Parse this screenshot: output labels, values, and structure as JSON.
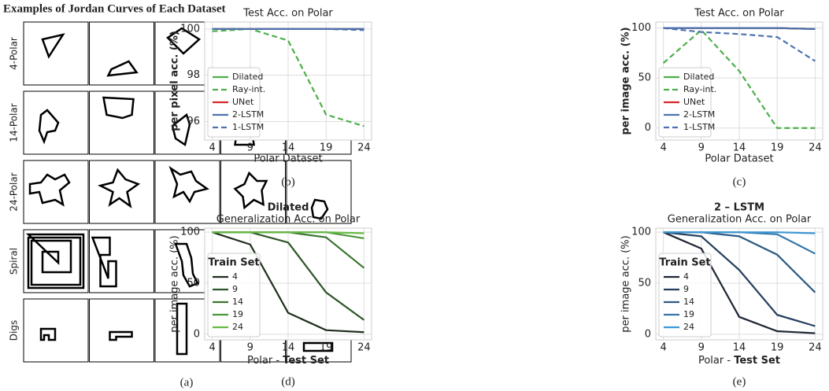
{
  "panel_a": {
    "title": "Examples of Jordan Curves of Each Dataset",
    "row_labels": [
      "4-Polar",
      "14-Polar",
      "24-Polar",
      "Spiral",
      "Digs"
    ],
    "caption": "(a)"
  },
  "chart_data": [
    {
      "type": "line",
      "title": "Test Acc. on Polar",
      "ylabel": "per pixel acc.  (%)",
      "xlabel": "Polar Dataset",
      "caption": "(b)",
      "x": [
        4,
        9,
        14,
        19,
        24
      ],
      "xlim": [
        3,
        25
      ],
      "xticks": [
        4,
        9,
        14,
        19,
        24
      ],
      "ylim": [
        95.2,
        100.3
      ],
      "yticks": [
        96,
        98,
        100
      ],
      "grid": true,
      "legend": "lower left",
      "series": [
        {
          "name": "Dilated",
          "color": "#4daf4a",
          "dash": false,
          "values": [
            100,
            100,
            100,
            100,
            100
          ]
        },
        {
          "name": "Ray-int.",
          "color": "#4daf4a",
          "dash": true,
          "values": [
            99.9,
            100,
            99.5,
            96.3,
            95.8
          ]
        },
        {
          "name": "UNet",
          "color": "#d62728",
          "dash": false,
          "values": [
            100,
            100,
            100,
            100,
            100
          ]
        },
        {
          "name": "2-LSTM",
          "color": "#4c72b0",
          "dash": false,
          "values": [
            100,
            100,
            100,
            100,
            100
          ]
        },
        {
          "name": "1-LSTM",
          "color": "#4c72b0",
          "dash": true,
          "values": [
            100,
            100,
            100,
            100,
            99.95
          ]
        }
      ]
    },
    {
      "type": "line",
      "title": "Test Acc. on Polar",
      "ylabel": "per image acc.  (%)",
      "xlabel": "Polar Dataset",
      "caption": "(c)",
      "x": [
        4,
        9,
        14,
        19,
        24
      ],
      "xlim": [
        3,
        25
      ],
      "xticks": [
        4,
        9,
        14,
        19,
        24
      ],
      "ylim": [
        -12,
        106
      ],
      "yticks": [
        0,
        50,
        100
      ],
      "grid": true,
      "legend": "lower left",
      "series": [
        {
          "name": "Dilated",
          "color": "#4daf4a",
          "dash": false,
          "values": [
            100,
            100,
            100,
            100,
            99
          ]
        },
        {
          "name": "Ray-int.",
          "color": "#4daf4a",
          "dash": true,
          "values": [
            65,
            98,
            57,
            0,
            0
          ]
        },
        {
          "name": "UNet",
          "color": "#d62728",
          "dash": false,
          "values": [
            100,
            100,
            100,
            100,
            99
          ]
        },
        {
          "name": "2-LSTM",
          "color": "#4c72b0",
          "dash": false,
          "values": [
            100,
            100,
            100,
            100,
            99
          ]
        },
        {
          "name": "1-LSTM",
          "color": "#4c72b0",
          "dash": true,
          "values": [
            100,
            96,
            94,
            91,
            67
          ]
        }
      ]
    },
    {
      "type": "line",
      "title": "Dilated",
      "subtitle": "Generalization Acc. on Polar",
      "ylabel": "per image acc. (%)",
      "xlabel": [
        "Polar - ",
        "Test Set"
      ],
      "caption": "(d)",
      "legend_title": "Train Set",
      "x": [
        4,
        9,
        14,
        19,
        24
      ],
      "xlim": [
        3,
        25
      ],
      "xticks": [
        4,
        9,
        14,
        19,
        24
      ],
      "ylim": [
        -5.5,
        104
      ],
      "yticks": [
        0,
        50,
        100
      ],
      "grid": true,
      "legend": "lower left",
      "series": [
        {
          "name": "4",
          "color": "#1f2f1c",
          "dash": false,
          "values": [
            100,
            88,
            21,
            4,
            2
          ]
        },
        {
          "name": "9",
          "color": "#2d5527",
          "dash": false,
          "values": [
            100,
            100,
            90,
            41,
            14
          ]
        },
        {
          "name": "14",
          "color": "#3b7431",
          "dash": false,
          "values": [
            100,
            100,
            100,
            95,
            65
          ]
        },
        {
          "name": "19",
          "color": "#4c973a",
          "dash": false,
          "values": [
            100,
            100,
            100,
            100,
            94
          ]
        },
        {
          "name": "24",
          "color": "#66bb44",
          "dash": false,
          "values": [
            100,
            100,
            100,
            100,
            99
          ]
        }
      ]
    },
    {
      "type": "line",
      "title": "2 – LSTM",
      "subtitle": "Generalization Acc. on Polar",
      "ylabel": "per image acc. (%)",
      "xlabel": [
        "Polar - ",
        "Test Set"
      ],
      "caption": "(e)",
      "legend_title": "Train Set",
      "x": [
        4,
        9,
        14,
        19,
        24
      ],
      "xlim": [
        3,
        25
      ],
      "xticks": [
        4,
        9,
        14,
        19,
        24
      ],
      "ylim": [
        -5.5,
        104
      ],
      "yticks": [
        0,
        50,
        100
      ],
      "grid": true,
      "legend": "lower left",
      "series": [
        {
          "name": "4",
          "color": "#1e2633",
          "dash": false,
          "values": [
            100,
            84,
            17,
            3,
            1
          ]
        },
        {
          "name": "9",
          "color": "#243f5e",
          "dash": false,
          "values": [
            100,
            96,
            63,
            19,
            8
          ]
        },
        {
          "name": "14",
          "color": "#2d5b84",
          "dash": false,
          "values": [
            100,
            100,
            96,
            78,
            41
          ]
        },
        {
          "name": "19",
          "color": "#3577ab",
          "dash": false,
          "values": [
            100,
            100,
            100,
            98,
            79
          ]
        },
        {
          "name": "24",
          "color": "#3f97d4",
          "dash": false,
          "values": [
            100,
            100,
            100,
            100,
            99
          ]
        }
      ]
    }
  ]
}
